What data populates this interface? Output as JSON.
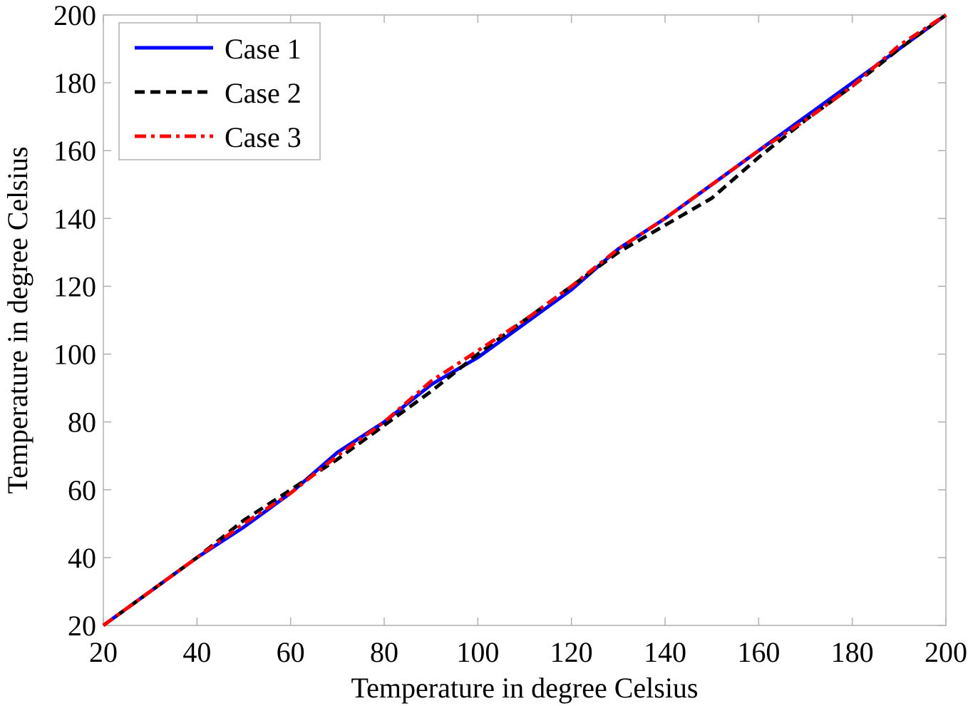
{
  "chart_data": {
    "type": "line",
    "title": "",
    "xlabel": "Temperature in degree Celsius",
    "ylabel": "Temperature in degree Celsius",
    "xlim": [
      20,
      200
    ],
    "ylim": [
      20,
      200
    ],
    "xticks": [
      20,
      40,
      60,
      80,
      100,
      120,
      140,
      160,
      180,
      200
    ],
    "yticks": [
      20,
      40,
      60,
      80,
      100,
      120,
      140,
      160,
      180,
      200
    ],
    "grid": false,
    "legend_position": "upper left",
    "x": [
      20,
      30,
      40,
      50,
      60,
      70,
      80,
      90,
      100,
      110,
      120,
      130,
      140,
      150,
      160,
      170,
      180,
      190,
      200
    ],
    "series": [
      {
        "name": "Case 1",
        "color": "#0000ff",
        "style": "solid",
        "values": [
          20,
          30,
          40,
          49,
          59,
          71,
          80,
          91,
          99,
          109,
          119,
          131,
          140,
          150,
          160,
          170,
          180,
          190,
          200
        ]
      },
      {
        "name": "Case 2",
        "color": "#000000",
        "style": "dashed",
        "values": [
          20,
          30,
          40,
          51,
          60,
          69,
          79,
          89,
          100,
          110,
          120,
          130,
          138,
          146,
          158,
          169,
          179,
          190,
          200
        ]
      },
      {
        "name": "Case 3",
        "color": "#ff0000",
        "style": "dashdot",
        "values": [
          20,
          30,
          40,
          50,
          59,
          70,
          80,
          92,
          101,
          110,
          120,
          131,
          140,
          150,
          160,
          169,
          179,
          191,
          200
        ]
      }
    ]
  }
}
